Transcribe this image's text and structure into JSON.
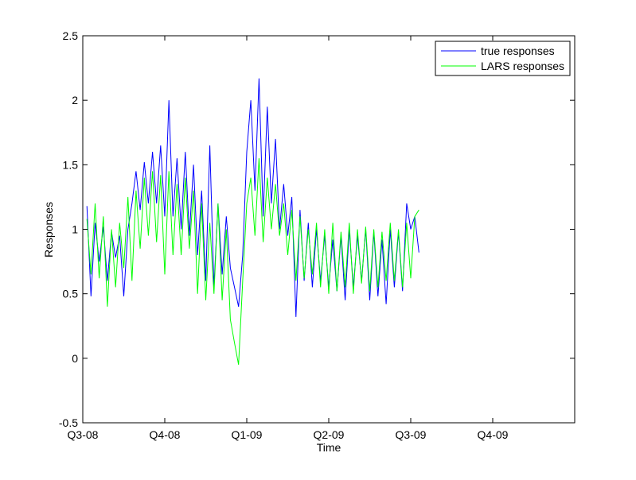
{
  "chart_data": {
    "type": "line",
    "title": "",
    "xlabel": "Time",
    "ylabel": "Responses",
    "xlim": [
      0,
      6
    ],
    "ylim": [
      -0.5,
      2.5
    ],
    "x_tick_labels": [
      "Q3-08",
      "Q4-08",
      "Q1-09",
      "Q2-09",
      "Q3-09",
      "Q4-09"
    ],
    "y_ticks": [
      -0.5,
      0,
      0.5,
      1,
      1.5,
      2,
      2.5
    ],
    "y_tick_labels": [
      "-0.5",
      "0",
      "0.5",
      "1",
      "1.5",
      "2",
      "2.5"
    ],
    "grid": false,
    "legend_position": "top-right",
    "series": [
      {
        "name": "true responses",
        "color": "#0000ff",
        "x": [
          0.05,
          0.1,
          0.15,
          0.2,
          0.25,
          0.3,
          0.35,
          0.4,
          0.45,
          0.5,
          0.55,
          0.6,
          0.65,
          0.7,
          0.75,
          0.8,
          0.85,
          0.9,
          0.95,
          1.0,
          1.05,
          1.1,
          1.15,
          1.2,
          1.25,
          1.3,
          1.35,
          1.4,
          1.45,
          1.5,
          1.55,
          1.6,
          1.65,
          1.7,
          1.75,
          1.8,
          1.85,
          1.9,
          1.95,
          2.0,
          2.05,
          2.1,
          2.15,
          2.2,
          2.25,
          2.3,
          2.35,
          2.4,
          2.45,
          2.5,
          2.55,
          2.6,
          2.65,
          2.7,
          2.75,
          2.8,
          2.85,
          2.9,
          2.95,
          3.0,
          3.05,
          3.1,
          3.15,
          3.2,
          3.25,
          3.3,
          3.35,
          3.4,
          3.45,
          3.5,
          3.55,
          3.6,
          3.65,
          3.7,
          3.75,
          3.8,
          3.85,
          3.9,
          3.95,
          4.0,
          4.05,
          4.1
        ],
        "values": [
          1.18,
          0.48,
          1.05,
          0.75,
          1.02,
          0.6,
          0.98,
          0.78,
          0.95,
          0.48,
          1.0,
          1.2,
          1.45,
          1.15,
          1.52,
          1.2,
          1.6,
          1.2,
          1.65,
          1.1,
          2.0,
          1.1,
          1.55,
          1.0,
          1.6,
          0.95,
          1.5,
          0.8,
          1.3,
          0.6,
          1.65,
          0.55,
          1.2,
          0.65,
          1.1,
          0.7,
          0.55,
          0.4,
          0.8,
          1.6,
          2.0,
          1.3,
          2.17,
          1.1,
          1.95,
          1.2,
          1.7,
          1.0,
          1.35,
          0.95,
          1.25,
          0.32,
          1.15,
          0.6,
          1.05,
          0.55,
          1.0,
          0.6,
          0.95,
          0.55,
          0.92,
          0.52,
          0.95,
          0.45,
          1.0,
          0.55,
          0.95,
          0.6,
          1.0,
          0.45,
          0.98,
          0.48,
          0.92,
          0.42,
          1.0,
          0.55,
          0.98,
          0.52,
          1.2,
          1.0,
          1.1,
          0.82
        ]
      },
      {
        "name": "LARS responses",
        "color": "#00ff00",
        "x": [
          0.05,
          0.1,
          0.15,
          0.2,
          0.25,
          0.3,
          0.35,
          0.4,
          0.45,
          0.5,
          0.55,
          0.6,
          0.65,
          0.7,
          0.75,
          0.8,
          0.85,
          0.9,
          0.95,
          1.0,
          1.05,
          1.1,
          1.15,
          1.2,
          1.25,
          1.3,
          1.35,
          1.4,
          1.45,
          1.5,
          1.55,
          1.6,
          1.65,
          1.7,
          1.75,
          1.8,
          1.85,
          1.9,
          1.95,
          2.0,
          2.05,
          2.1,
          2.15,
          2.2,
          2.25,
          2.3,
          2.35,
          2.4,
          2.45,
          2.5,
          2.55,
          2.6,
          2.65,
          2.7,
          2.75,
          2.8,
          2.85,
          2.9,
          2.95,
          3.0,
          3.05,
          3.1,
          3.15,
          3.2,
          3.25,
          3.3,
          3.35,
          3.4,
          3.45,
          3.5,
          3.55,
          3.6,
          3.65,
          3.7,
          3.75,
          3.8,
          3.85,
          3.9,
          3.95,
          4.0,
          4.05,
          4.1
        ],
        "values": [
          1.08,
          0.65,
          1.2,
          0.62,
          1.1,
          0.4,
          1.0,
          0.55,
          1.05,
          0.7,
          1.25,
          0.6,
          1.3,
          0.85,
          1.4,
          0.95,
          1.45,
          0.9,
          1.42,
          0.65,
          1.45,
          0.8,
          1.35,
          0.8,
          1.4,
          0.85,
          1.3,
          0.5,
          1.2,
          0.45,
          1.05,
          0.5,
          1.2,
          0.45,
          1.0,
          0.3,
          0.12,
          -0.05,
          0.6,
          1.2,
          1.4,
          0.95,
          1.55,
          0.9,
          1.4,
          1.0,
          1.35,
          0.95,
          1.2,
          0.8,
          1.15,
          0.6,
          1.1,
          0.62,
          1.0,
          0.65,
          1.05,
          0.55,
          1.0,
          0.5,
          1.05,
          0.52,
          0.98,
          0.55,
          1.05,
          0.5,
          1.0,
          0.58,
          1.02,
          0.52,
          1.0,
          0.55,
          0.98,
          0.6,
          1.05,
          0.6,
          1.0,
          0.55,
          1.05,
          0.62,
          1.1,
          1.15
        ]
      }
    ]
  }
}
